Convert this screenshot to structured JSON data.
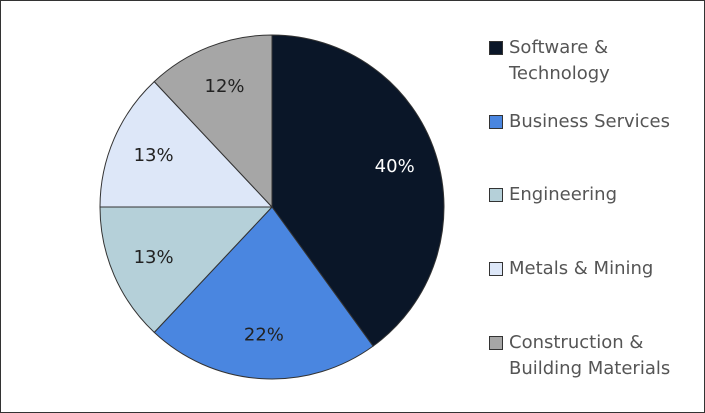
{
  "chart_data": {
    "type": "pie",
    "categories": [
      "Software & Technology",
      "Business Services",
      "Engineering",
      "Metals & Mining",
      "Construction & Building Materials"
    ],
    "values": [
      40,
      22,
      13,
      13,
      12
    ],
    "value_labels": [
      "40%",
      "22%",
      "13%",
      "13%",
      "12%"
    ],
    "colors": [
      "#0a1628",
      "#4a86e0",
      "#b5d0d9",
      "#dde7f8",
      "#a6a6a6"
    ],
    "label_colors": [
      "#ffffff",
      "#222222",
      "#222222",
      "#222222",
      "#222222"
    ]
  }
}
